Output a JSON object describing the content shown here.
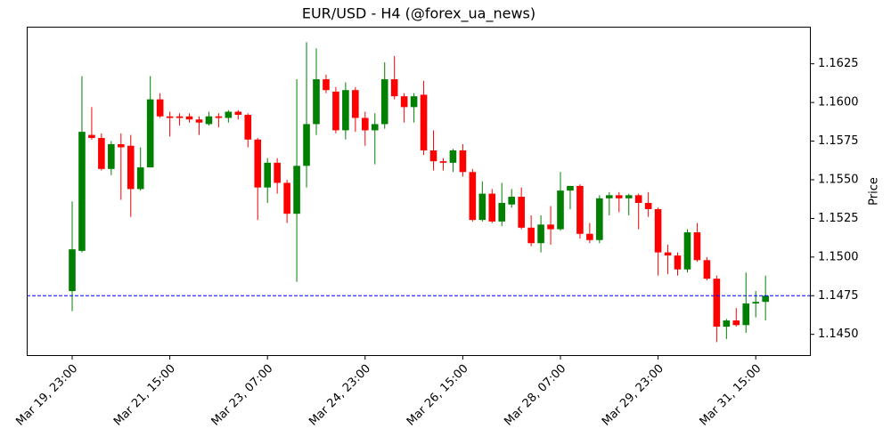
{
  "chart_data": {
    "type": "candlestick",
    "title": "EUR/USD - H4 (@forex_ua_news)",
    "ylabel": "Price",
    "categories": [
      "Mar 19, 23:00",
      null,
      null,
      null,
      null,
      null,
      null,
      null,
      null,
      null,
      "Mar 21, 15:00",
      null,
      null,
      null,
      null,
      null,
      null,
      null,
      null,
      null,
      "Mar 23, 07:00",
      null,
      null,
      null,
      null,
      null,
      null,
      null,
      null,
      null,
      "Mar 24, 23:00",
      null,
      null,
      null,
      null,
      null,
      null,
      null,
      null,
      null,
      "Mar 26, 15:00",
      null,
      null,
      null,
      null,
      null,
      null,
      null,
      null,
      null,
      "Mar 28, 07:00",
      null,
      null,
      null,
      null,
      null,
      null,
      null,
      null,
      null,
      "Mar 29, 23:00",
      null,
      null,
      null,
      null,
      null,
      null,
      null,
      null,
      null,
      "Mar 31, 15:00",
      null
    ],
    "open": [
      1.1478,
      1.1504,
      1.1579,
      1.1577,
      1.1557,
      1.1573,
      1.1572,
      1.1544,
      1.1558,
      1.1602,
      1.1591,
      1.1591,
      1.1591,
      1.1589,
      1.1586,
      1.1591,
      1.159,
      1.1594,
      1.1592,
      1.1576,
      1.1545,
      1.1561,
      1.1548,
      1.1528,
      1.1559,
      1.1586,
      1.1615,
      1.1607,
      1.1582,
      1.1608,
      1.159,
      1.1582,
      1.1586,
      1.1615,
      1.1604,
      1.1597,
      1.1605,
      1.1569,
      1.1562,
      1.1561,
      1.1569,
      1.1555,
      1.1524,
      1.1541,
      1.1523,
      1.1534,
      1.1539,
      1.1519,
      1.1509,
      1.1521,
      1.1518,
      1.1543,
      1.1546,
      1.1515,
      1.1511,
      1.1538,
      1.154,
      1.1538,
      1.154,
      1.1535,
      1.1531,
      1.1503,
      1.1501,
      1.1492,
      1.1516,
      1.1498,
      1.1486,
      1.1455,
      1.1459,
      1.1456,
      1.147,
      1.1471
    ],
    "high": [
      1.1536,
      1.1617,
      1.1597,
      1.158,
      1.1575,
      1.158,
      1.1579,
      1.1571,
      1.1617,
      1.1606,
      1.1594,
      1.1593,
      1.1593,
      1.1591,
      1.1594,
      1.1593,
      1.1595,
      1.1595,
      1.1593,
      1.1577,
      1.1564,
      1.1564,
      1.155,
      1.1615,
      1.1639,
      1.1635,
      1.1618,
      1.161,
      1.1613,
      1.161,
      1.1594,
      1.1593,
      1.1626,
      1.163,
      1.1606,
      1.1606,
      1.1614,
      1.1582,
      1.1564,
      1.157,
      1.1573,
      1.1557,
      1.1549,
      1.1544,
      1.1548,
      1.1544,
      1.1545,
      1.1527,
      1.1527,
      1.1533,
      1.1555,
      1.1546,
      1.1547,
      1.1522,
      1.154,
      1.1542,
      1.1542,
      1.1541,
      1.1541,
      1.1542,
      1.1532,
      1.1508,
      1.1503,
      1.1518,
      1.1522,
      1.15,
      1.1488,
      1.146,
      1.1467,
      1.149,
      1.1478,
      1.1488
    ],
    "low": [
      1.1465,
      1.1503,
      1.1576,
      1.1556,
      1.1553,
      1.1537,
      1.1526,
      1.1543,
      1.1558,
      1.159,
      1.1578,
      1.1585,
      1.1587,
      1.1579,
      1.1585,
      1.1584,
      1.1587,
      1.1589,
      1.1571,
      1.1524,
      1.1535,
      1.1541,
      1.1522,
      1.1484,
      1.1545,
      1.1579,
      1.1606,
      1.158,
      1.1576,
      1.1581,
      1.1572,
      1.156,
      1.1583,
      1.1602,
      1.1587,
      1.1587,
      1.1566,
      1.1556,
      1.1556,
      1.1555,
      1.1552,
      1.1523,
      1.1523,
      1.1522,
      1.152,
      1.1532,
      1.1518,
      1.1507,
      1.1503,
      1.1508,
      1.1517,
      1.1531,
      1.1512,
      1.1509,
      1.1509,
      1.1527,
      1.1529,
      1.1527,
      1.1518,
      1.1526,
      1.1488,
      1.1489,
      1.1488,
      1.149,
      1.1497,
      1.1485,
      1.1445,
      1.1447,
      1.1455,
      1.1451,
      1.1461,
      1.1459
    ],
    "close": [
      1.1505,
      1.1581,
      1.1577,
      1.1557,
      1.1573,
      1.1571,
      1.1544,
      1.1558,
      1.1602,
      1.1591,
      1.159,
      1.159,
      1.1589,
      1.1587,
      1.1591,
      1.159,
      1.1594,
      1.1592,
      1.1576,
      1.1545,
      1.1561,
      1.1548,
      1.1528,
      1.1559,
      1.1586,
      1.1615,
      1.1608,
      1.1582,
      1.1608,
      1.159,
      1.1582,
      1.1586,
      1.1615,
      1.1604,
      1.1597,
      1.1604,
      1.1569,
      1.1562,
      1.1561,
      1.1569,
      1.1555,
      1.1524,
      1.1541,
      1.1523,
      1.1535,
      1.1539,
      1.1519,
      1.1509,
      1.1521,
      1.1518,
      1.1543,
      1.1546,
      1.1515,
      1.1511,
      1.1538,
      1.154,
      1.1538,
      1.154,
      1.1535,
      1.1531,
      1.1503,
      1.1501,
      1.1492,
      1.1516,
      1.1498,
      1.1486,
      1.1455,
      1.1459,
      1.1456,
      1.147,
      1.1471,
      1.1475
    ],
    "up_color": "#008000",
    "down_color": "#ff0000",
    "reference_line": {
      "value": 1.1475,
      "color": "#0000ff"
    },
    "ylim": [
      1.1436,
      1.1649
    ],
    "yticks": [
      {
        "value": 1.145,
        "label": "1.1450"
      },
      {
        "value": 1.1475,
        "label": "1.1475"
      },
      {
        "value": 1.15,
        "label": "1.1500"
      },
      {
        "value": 1.1525,
        "label": "1.1525"
      },
      {
        "value": 1.155,
        "label": "1.1550"
      },
      {
        "value": 1.1575,
        "label": "1.1575"
      },
      {
        "value": 1.16,
        "label": "1.1600"
      },
      {
        "value": 1.1625,
        "label": "1.1625"
      }
    ]
  }
}
